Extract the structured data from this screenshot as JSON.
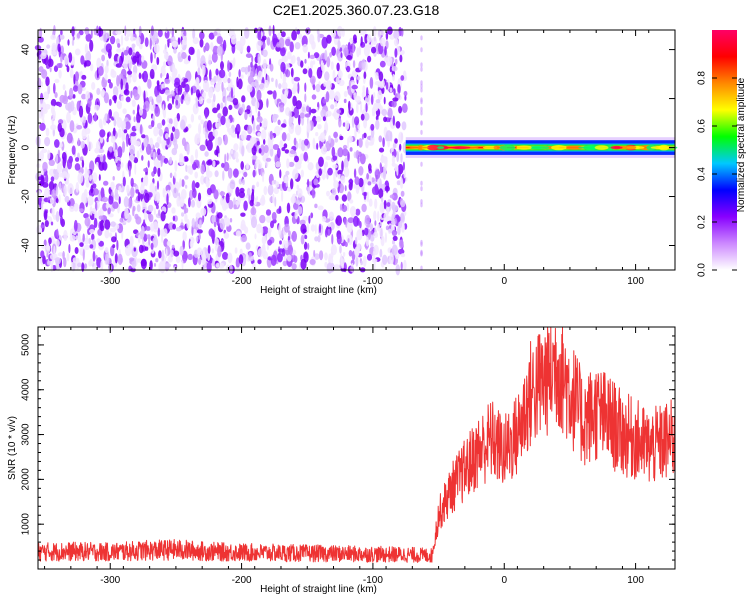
{
  "title": "C2E1.2025.360.07.23.G18",
  "chart_data": [
    {
      "type": "heatmap",
      "xlabel": "Height of straight line (km)",
      "ylabel": "Frequency (Hz)",
      "xlim": [
        -355,
        130
      ],
      "ylim": [
        -50,
        48
      ],
      "xticks": [
        -300,
        -200,
        -100,
        0,
        100
      ],
      "yticks": [
        -40,
        -20,
        0,
        20,
        40
      ],
      "noise_region_x": [
        -355,
        -75
      ],
      "faint_line_x": -63,
      "signal_band": {
        "x": [
          -75,
          130
        ],
        "frequency_hz": 0,
        "halfwidth_hz": 3
      },
      "colorbar": {
        "label": "Normalized spectral amplitude",
        "range": [
          0.0,
          1.0
        ],
        "ticks": [
          0.0,
          0.2,
          0.4,
          0.6,
          0.8
        ],
        "colors": [
          "#ffffff",
          "#cc88ff",
          "#8800ff",
          "#0000ff",
          "#00c8ff",
          "#00ff00",
          "#ffff00",
          "#ff8800",
          "#ff0000",
          "#ff0066"
        ]
      }
    },
    {
      "type": "line",
      "xlabel": "Height of straight line (km)",
      "ylabel": "SNR (10 * v/v)",
      "xlim": [
        -355,
        130
      ],
      "ylim": [
        0,
        5400
      ],
      "xticks": [
        -300,
        -200,
        -100,
        0,
        100
      ],
      "yticks": [
        1000,
        2000,
        3000,
        4000,
        5000
      ],
      "color": "#ee3333",
      "series": [
        {
          "x": [
            -355,
            -330,
            -300,
            -275,
            -250,
            -225,
            -200,
            -175,
            -150,
            -125,
            -100,
            -75,
            -55,
            -50,
            -40,
            -30,
            -20,
            -10,
            0,
            10,
            20,
            30,
            40,
            50,
            60,
            70,
            80,
            90,
            100,
            110,
            120,
            130
          ],
          "y": [
            380,
            390,
            380,
            410,
            430,
            390,
            370,
            360,
            350,
            340,
            330,
            320,
            300,
            1200,
            1800,
            2200,
            2600,
            2900,
            2600,
            3000,
            3900,
            4200,
            4600,
            4000,
            3300,
            3500,
            3300,
            3000,
            2900,
            2700,
            2800,
            2900
          ]
        }
      ]
    }
  ]
}
